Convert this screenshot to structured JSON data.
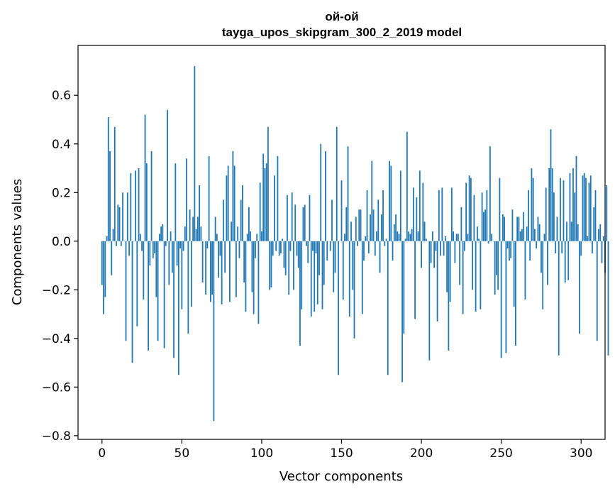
{
  "chart_data": {
    "type": "bar",
    "title": "ой-ой",
    "subtitle": "tayga_upos_skipgram_300_2_2019 model",
    "xlabel": "Vector components",
    "ylabel": "Components values",
    "xlim": [
      -15,
      315
    ],
    "ylim": [
      -0.815,
      0.805
    ],
    "xticks": [
      0,
      50,
      100,
      150,
      200,
      250,
      300
    ],
    "yticks": [
      -0.8,
      -0.6,
      -0.4,
      -0.2,
      0.0,
      0.2,
      0.4,
      0.6
    ],
    "ytick_labels": [
      "−0.8",
      "−0.6",
      "−0.4",
      "−0.2",
      "0.0",
      "0.2",
      "0.4",
      "0.6"
    ],
    "xtick_labels": [
      "0",
      "50",
      "100",
      "150",
      "200",
      "250",
      "300"
    ],
    "grid": false,
    "bar_color": "#1f77b4",
    "values": [
      -0.18,
      -0.3,
      -0.23,
      0.02,
      0.51,
      0.37,
      -0.14,
      0.05,
      0.47,
      -0.02,
      0.15,
      0.14,
      -0.02,
      0.2,
      0.0,
      -0.41,
      0.2,
      -0.06,
      0.28,
      -0.5,
      0.0,
      0.29,
      -0.35,
      0.3,
      0.03,
      -0.04,
      -0.24,
      0.52,
      0.32,
      -0.45,
      -0.1,
      0.37,
      -0.07,
      -0.05,
      -0.23,
      -0.41,
      0.03,
      0.06,
      0.07,
      -0.44,
      -0.02,
      0.54,
      -0.18,
      0.04,
      -0.13,
      -0.48,
      0.32,
      -0.1,
      -0.55,
      -0.03,
      -0.28,
      -0.04,
      0.06,
      0.34,
      -0.38,
      0.13,
      -0.27,
      0.1,
      0.72,
      0.05,
      0.1,
      0.23,
      0.06,
      -0.17,
      0.0,
      -0.22,
      -0.03,
      0.35,
      -0.25,
      -0.22,
      -0.74,
      0.1,
      0.03,
      -0.15,
      -0.06,
      -0.26,
      0.17,
      -0.13,
      0.27,
      0.31,
      -0.25,
      0.08,
      0.37,
      0.31,
      -0.23,
      0.06,
      -0.07,
      0.17,
      0.23,
      -0.17,
      -0.29,
      0.03,
      0.14,
      0.04,
      -0.21,
      -0.3,
      -0.07,
      0.03,
      -0.34,
      0.24,
      0.04,
      0.36,
      0.3,
      0.32,
      0.47,
      -0.2,
      -0.19,
      -0.06,
      0.27,
      -0.04,
      0.35,
      -0.06,
      -0.05,
      0.01,
      -0.11,
      -0.14,
      0.19,
      -0.22,
      -0.04,
      0.2,
      -0.2,
      0.15,
      -0.06,
      -0.11,
      -0.43,
      -0.28,
      0.14,
      0.15,
      -0.02,
      -0.09,
      0.19,
      -0.31,
      -0.04,
      -0.29,
      -0.05,
      -0.26,
      -0.14,
      0.4,
      -0.28,
      -0.18,
      0.37,
      -0.08,
      0.0,
      -0.04,
      0.17,
      -0.21,
      -0.13,
      0.47,
      -0.55,
      0.0,
      0.25,
      -0.24,
      0.03,
      0.14,
      0.39,
      -0.31,
      0.08,
      -0.2,
      -0.4,
      0.1,
      -0.02,
      0.13,
      0.13,
      -0.3,
      -0.08,
      0.02,
      0.21,
      -0.05,
      0.11,
      0.33,
      0.13,
      -0.06,
      0.04,
      0.17,
      -0.13,
      0.11,
      0.21,
      -0.02,
      0.01,
      -0.55,
      0.33,
      0.31,
      -0.08,
      0.07,
      0.11,
      0.04,
      0.03,
      0.29,
      -0.58,
      -0.38,
      0.01,
      0.45,
      0.04,
      0.03,
      0.05,
      0.22,
      -0.32,
      0.18,
      0.04,
      0.29,
      -0.11,
      0.24,
      0.08,
      0.01,
      0.0,
      -0.49,
      -0.09,
      0.04,
      -0.11,
      -0.04,
      -0.33,
      0.21,
      -0.06,
      0.22,
      -0.06,
      0.02,
      -0.21,
      -0.45,
      -0.25,
      0.22,
      0.04,
      -0.09,
      0.03,
      0.03,
      -0.18,
      0.14,
      -0.3,
      -0.04,
      0.24,
      0.03,
      0.27,
      0.26,
      -0.2,
      0.19,
      -0.29,
      0.06,
      0.01,
      -0.28,
      0.2,
      0.12,
      0.13,
      0.21,
      -0.01,
      0.39,
      0.03,
      0.0,
      -0.22,
      -0.14,
      -0.2,
      0.26,
      -0.48,
      0.11,
      0.1,
      -0.46,
      -0.03,
      -0.08,
      -0.07,
      0.13,
      -0.27,
      -0.43,
      0.1,
      0.1,
      0.04,
      0.05,
      0.12,
      -0.24,
      0.06,
      0.21,
      -0.08,
      0.3,
      0.26,
      0.05,
      -0.03,
      0.1,
      0.07,
      -0.13,
      -0.28,
      0.03,
      0.22,
      -0.18,
      0.3,
      0.46,
      0.3,
      0.2,
      -0.05,
      0.1,
      -0.47,
      0.26,
      -0.05,
      0.25,
      -0.17,
      0.08,
      -0.16,
      0.28,
      0.08,
      0.3,
      0.2,
      0.35,
      0.07,
      -0.38,
      -0.06,
      0.27,
      0.28,
      0.26,
      0.02,
      0.24,
      0.27,
      -0.05,
      0.14,
      0.21,
      -0.41,
      0.05,
      0.07,
      -0.09,
      0.02,
      -0.13,
      0.23,
      -0.47
    ]
  }
}
